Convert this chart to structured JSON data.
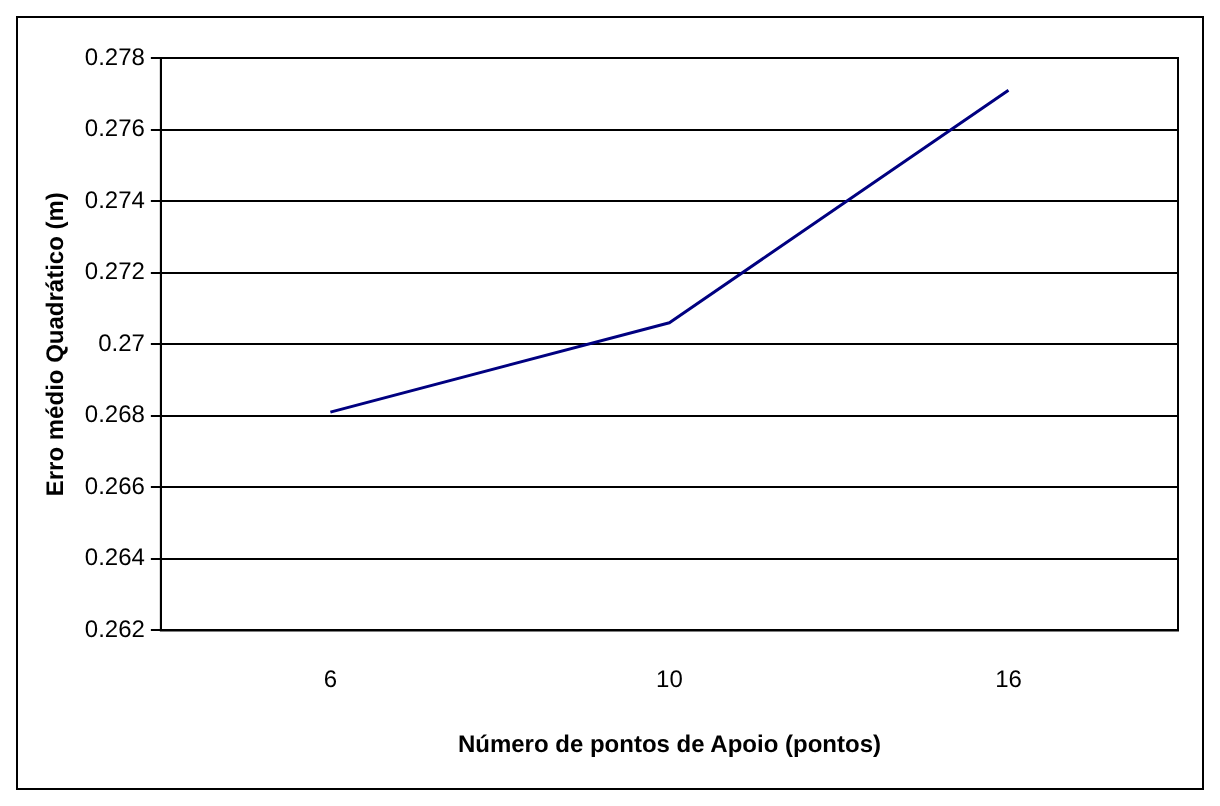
{
  "chart_data": {
    "type": "line",
    "xlabel": "Número de pontos de Apoio (pontos)",
    "ylabel": "Erro médio Quadrático (m)",
    "categories": [
      "6",
      "10",
      "16"
    ],
    "series": [
      {
        "color": "#000080",
        "values": [
          0.2681,
          0.2706,
          0.2771
        ]
      }
    ],
    "ylim": [
      0.262,
      0.278
    ],
    "yticks": [
      0.262,
      0.264,
      0.266,
      0.268,
      0.27,
      0.272,
      0.274,
      0.276,
      0.278
    ],
    "grid": "y",
    "legend": false,
    "marker": "none",
    "line_style": "solid"
  }
}
